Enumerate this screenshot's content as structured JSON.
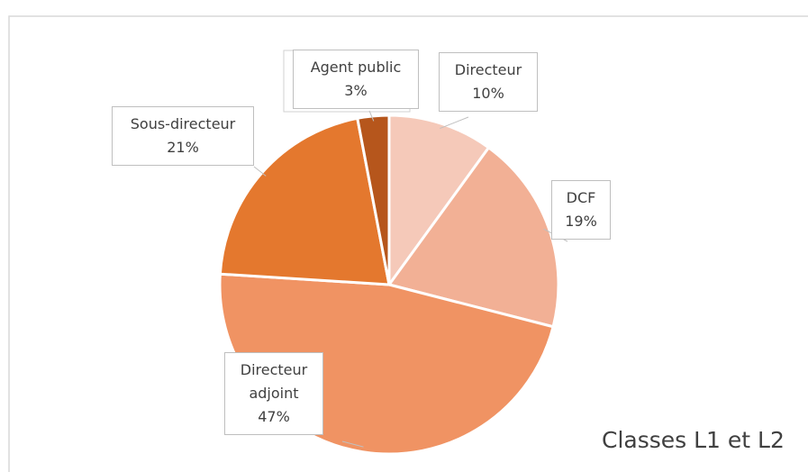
{
  "chart_data": {
    "type": "pie",
    "categories": [
      "Directeur",
      "DCF",
      "Directeur adjoint",
      "Sous-directeur",
      "Agent public"
    ],
    "values": [
      10,
      19,
      47,
      21,
      3
    ],
    "value_labels": [
      "10%",
      "19%",
      "47%",
      "21%",
      "3%"
    ],
    "colors": [
      "#f5c9b9",
      "#f2b095",
      "#f09363",
      "#e4782e",
      "#b6561c"
    ],
    "annotations": [
      "Classes L1 et L2"
    ]
  }
}
